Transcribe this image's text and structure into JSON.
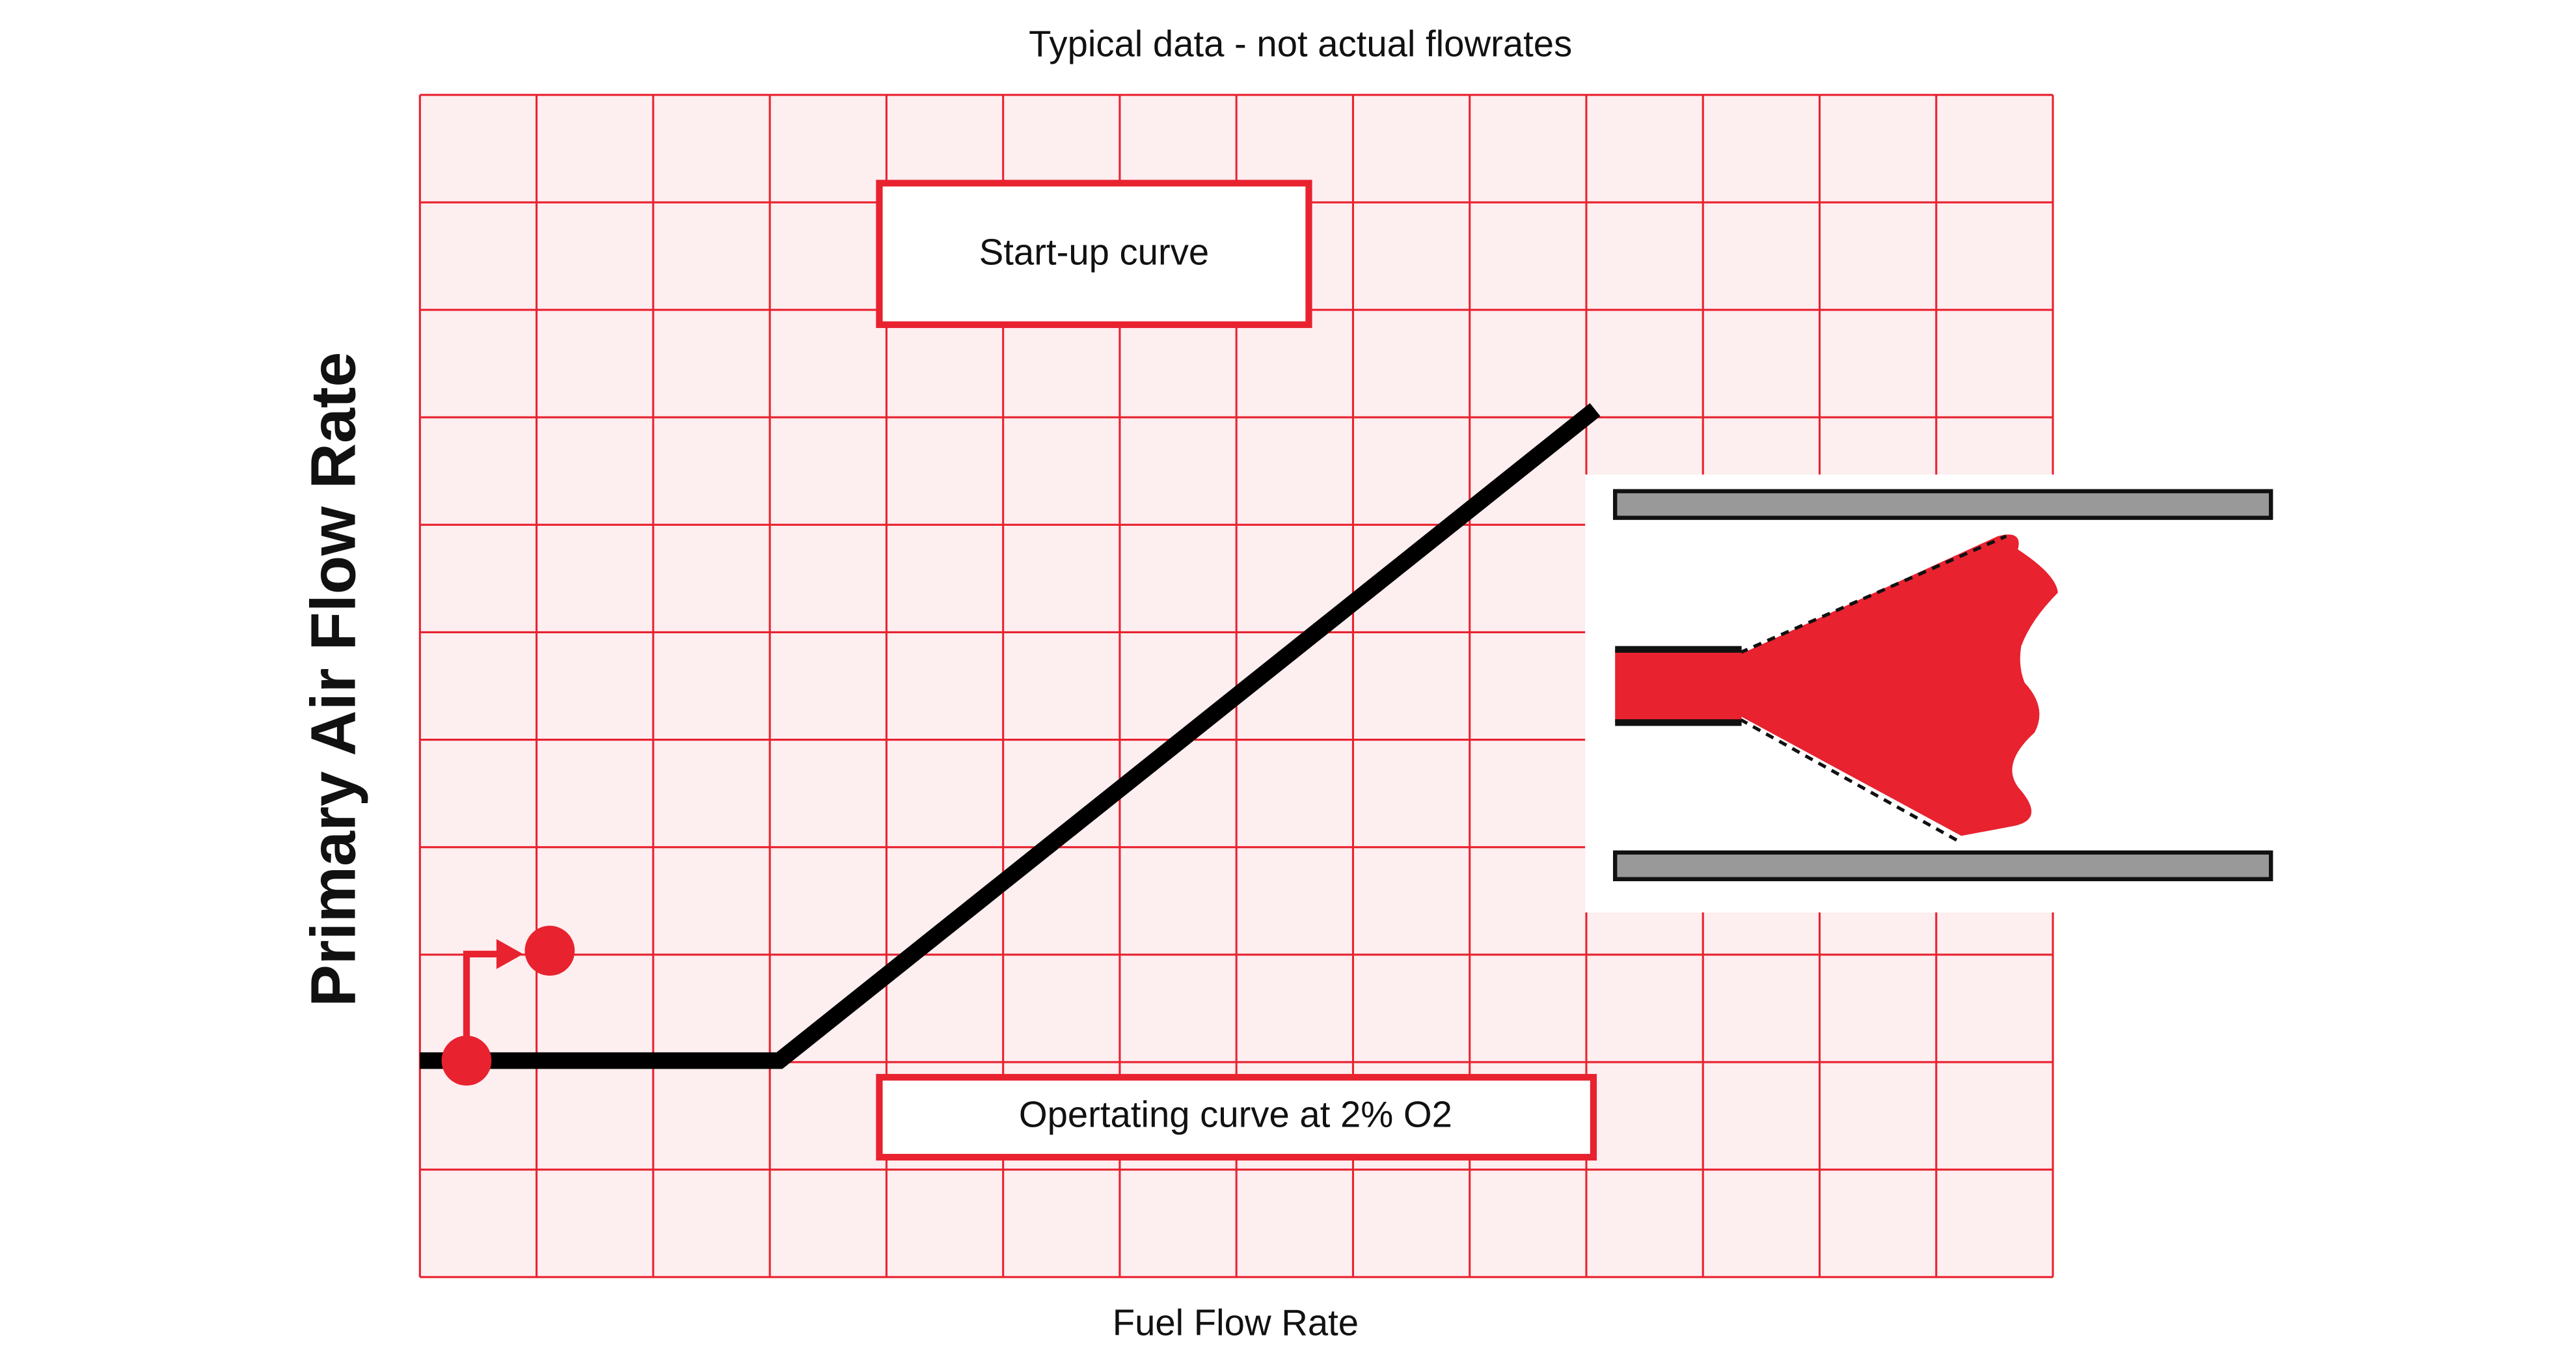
{
  "title": "Typical data - not actual flowrates",
  "x_axis_label": "Fuel Flow Rate",
  "y_axis_label": "Primary Air Flow Rate",
  "annotations": [
    "Start-up curve",
    "Opertating curve at 2% O2"
  ]
}
